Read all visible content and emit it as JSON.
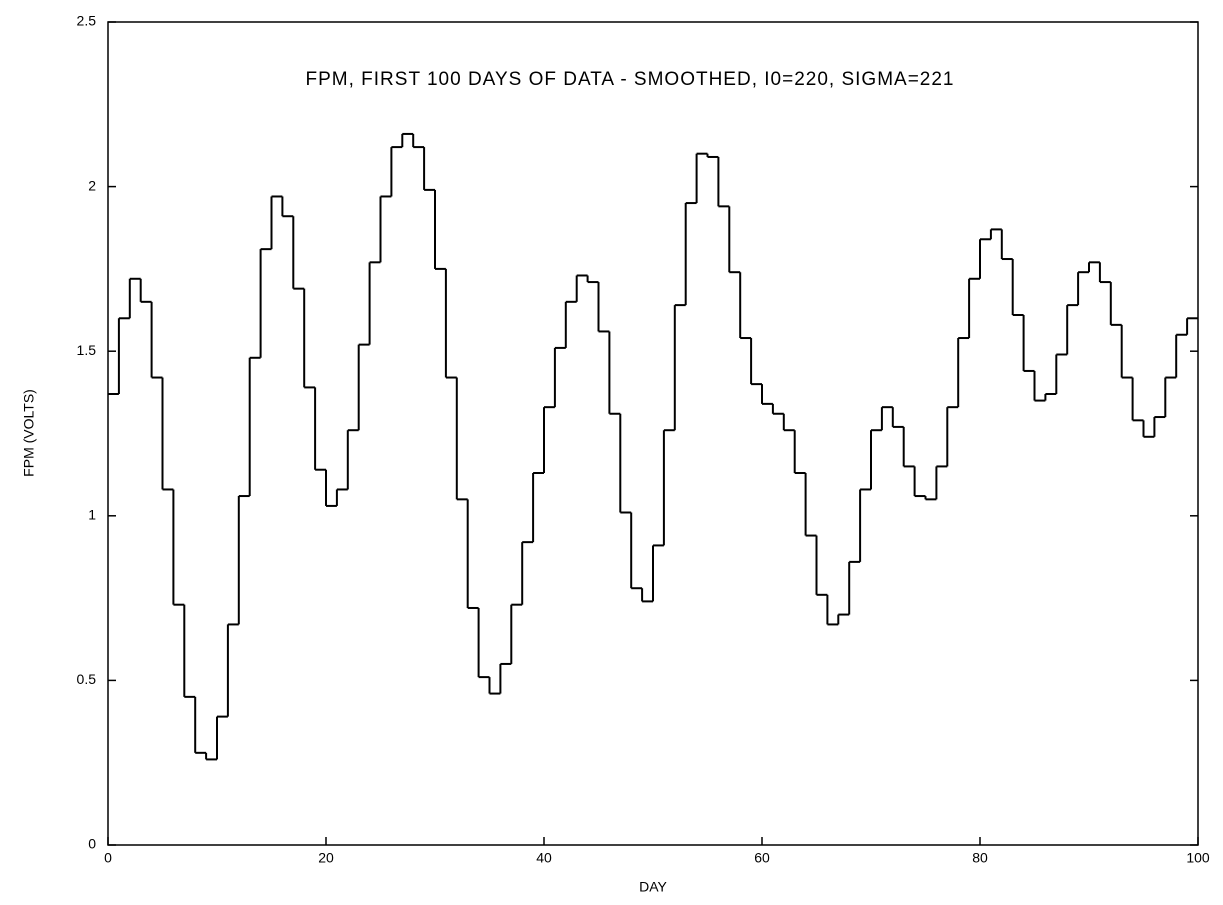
{
  "chart_data": {
    "type": "step",
    "title": "FPM, FIRST 100 DAYS OF DATA - SMOOTHED, I0=220, SIGMA=221",
    "xlabel": "DAY",
    "ylabel": "FPM (VOLTS)",
    "x": [
      0,
      1,
      2,
      3,
      4,
      5,
      6,
      7,
      8,
      9,
      10,
      11,
      12,
      13,
      14,
      15,
      16,
      17,
      18,
      19,
      20,
      21,
      22,
      23,
      24,
      25,
      26,
      27,
      28,
      29,
      30,
      31,
      32,
      33,
      34,
      35,
      36,
      37,
      38,
      39,
      40,
      41,
      42,
      43,
      44,
      45,
      46,
      47,
      48,
      49,
      50,
      51,
      52,
      53,
      54,
      55,
      56,
      57,
      58,
      59,
      60,
      61,
      62,
      63,
      64,
      65,
      66,
      67,
      68,
      69,
      70,
      71,
      72,
      73,
      74,
      75,
      76,
      77,
      78,
      79,
      80,
      81,
      82,
      83,
      84,
      85,
      86,
      87,
      88,
      89,
      90,
      91,
      92,
      93,
      94,
      95,
      96,
      97,
      98,
      99
    ],
    "values": [
      1.37,
      1.6,
      1.72,
      1.65,
      1.42,
      1.08,
      0.73,
      0.45,
      0.28,
      0.26,
      0.39,
      0.67,
      1.06,
      1.48,
      1.81,
      1.97,
      1.91,
      1.69,
      1.39,
      1.14,
      1.03,
      1.08,
      1.26,
      1.52,
      1.77,
      1.97,
      2.12,
      2.16,
      2.12,
      1.99,
      1.75,
      1.42,
      1.05,
      0.72,
      0.51,
      0.46,
      0.55,
      0.73,
      0.92,
      1.13,
      1.33,
      1.51,
      1.65,
      1.73,
      1.71,
      1.56,
      1.31,
      1.01,
      0.78,
      0.74,
      0.91,
      1.26,
      1.64,
      1.95,
      2.1,
      2.09,
      1.94,
      1.74,
      1.54,
      1.4,
      1.34,
      1.31,
      1.26,
      1.13,
      0.94,
      0.76,
      0.67,
      0.7,
      0.86,
      1.08,
      1.26,
      1.33,
      1.27,
      1.15,
      1.06,
      1.05,
      1.15,
      1.33,
      1.54,
      1.72,
      1.84,
      1.87,
      1.78,
      1.61,
      1.44,
      1.35,
      1.37,
      1.49,
      1.64,
      1.74,
      1.77,
      1.71,
      1.58,
      1.42,
      1.29,
      1.24,
      1.3,
      1.42,
      1.55,
      1.6
    ],
    "color": "#000000",
    "xlim": [
      0,
      100
    ],
    "xticks": [
      0,
      20,
      40,
      60,
      80,
      100
    ],
    "ylim": [
      0,
      2.5
    ],
    "yticks": [
      0,
      0.5,
      1,
      1.5,
      2,
      2.5
    ]
  }
}
